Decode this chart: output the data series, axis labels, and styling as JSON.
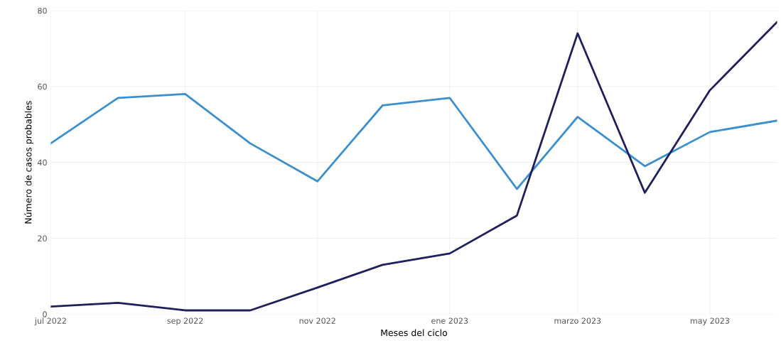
{
  "chart_data": {
    "type": "line",
    "xlabel": "Meses del ciclo",
    "ylabel": "Número de casos probables",
    "x": [
      "2022-07",
      "2022-08",
      "2022-09",
      "2022-10",
      "2022-11",
      "2022-12",
      "2023-01",
      "2023-02",
      "2023-03",
      "2023-04",
      "2023-05",
      "2023-06"
    ],
    "series": [
      {
        "color": "#3a8fd0",
        "values": [
          45,
          57,
          58,
          45,
          35,
          55,
          57,
          33,
          52,
          39,
          48,
          51
        ]
      },
      {
        "color": "#1e1f5c",
        "values": [
          2,
          3,
          1,
          1,
          7,
          13,
          16,
          26,
          74,
          32,
          59,
          77
        ]
      }
    ],
    "xlim": [
      "2022-07",
      "2023-06"
    ],
    "xticks": [
      {
        "value": "2022-07",
        "label": "jul 2022"
      },
      {
        "value": "2022-09",
        "label": "sep 2022"
      },
      {
        "value": "2022-11",
        "label": "nov 2022"
      },
      {
        "value": "2023-01",
        "label": "ene 2023"
      },
      {
        "value": "2023-03",
        "label": "marzo 2023"
      },
      {
        "value": "2023-05",
        "label": "may 2023"
      }
    ],
    "ylim": [
      0,
      80
    ],
    "yticks": [
      0,
      20,
      40,
      60,
      80
    ],
    "grid": true,
    "marker": "none",
    "line_style": "solid"
  }
}
